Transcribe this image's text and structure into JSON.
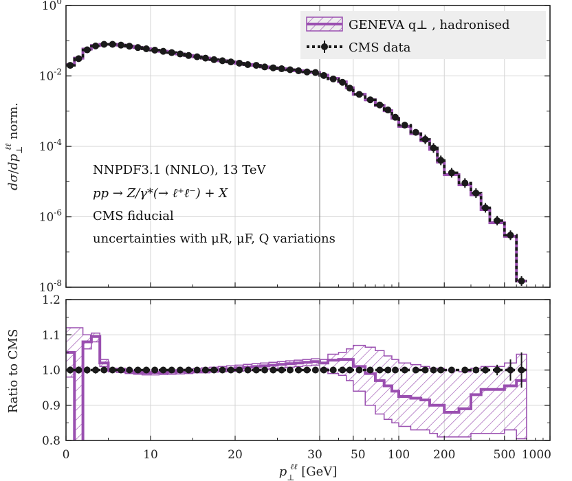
{
  "chart_data": [
    {
      "type": "line",
      "panel": "main",
      "ylabel": "dσ/dp⊥ℓℓ norm.",
      "yscale": "log",
      "ylim": [
        1e-08,
        1
      ],
      "ytick_labels": [
        {
          "value": 1,
          "base": "10",
          "exp": "0"
        },
        {
          "value": 0.01,
          "base": "10",
          "exp": "-2"
        },
        {
          "value": 0.0001,
          "base": "10",
          "exp": "-4"
        },
        {
          "value": 1e-06,
          "base": "10",
          "exp": "-6"
        },
        {
          "value": 1e-08,
          "base": "10",
          "exp": "-8"
        }
      ],
      "annotations": [
        "NNPDF3.1 (NNLO), 13 TeV",
        "pp → Z/γ*(→ ℓ⁺ℓ⁻) + X",
        "CMS fiducial",
        "uncertainties with μR, μF, Q variations"
      ],
      "legend_position": "top-right",
      "legend": [
        "GENEVA q⊥ , hadronised",
        "CMS data"
      ],
      "bin_edges": [
        0,
        1,
        2,
        3,
        4,
        5,
        6,
        7,
        8,
        9,
        10,
        11,
        12,
        13,
        14,
        15,
        16,
        17,
        18,
        19,
        20,
        21,
        22,
        23,
        24,
        25,
        26,
        27,
        28,
        29,
        30,
        34,
        40,
        45,
        50,
        60,
        70,
        80,
        90,
        100,
        120,
        140,
        160,
        180,
        200,
        250,
        300,
        350,
        400,
        500,
        600,
        700,
        1000
      ],
      "series": [
        {
          "name": "GENEVA q⊥ , hadronised",
          "values": [
            0.021,
            0.032,
            0.058,
            0.073,
            0.079,
            0.079,
            0.075,
            0.07,
            0.064,
            0.059,
            0.054,
            0.05,
            0.046,
            0.042,
            0.038,
            0.035,
            0.032,
            0.029,
            0.027,
            0.025,
            0.023,
            0.021,
            0.02,
            0.018,
            0.017,
            0.016,
            0.015,
            0.014,
            0.013,
            0.0125,
            0.0105,
            0.0085,
            0.0068,
            0.0046,
            0.003,
            0.0021,
            0.00145,
            0.00103,
            0.00063,
            0.00037,
            0.00023,
            0.000145,
            8.2e-05,
            3.6e-05,
            1.58e-05,
            8.1e-06,
            4.2e-06,
            1.6e-06,
            6.8e-07,
            2.8e-07,
            1.5e-08
          ]
        },
        {
          "name": "CMS data",
          "values": [
            0.02,
            0.031,
            0.055,
            0.071,
            0.079,
            0.079,
            0.075,
            0.07,
            0.064,
            0.059,
            0.054,
            0.05,
            0.046,
            0.042,
            0.038,
            0.035,
            0.032,
            0.029,
            0.027,
            0.025,
            0.023,
            0.021,
            0.02,
            0.018,
            0.017,
            0.016,
            0.015,
            0.014,
            0.013,
            0.0125,
            0.0103,
            0.0082,
            0.0066,
            0.0045,
            0.003,
            0.0021,
            0.0015,
            0.00108,
            0.00067,
            0.0004,
            0.00025,
            0.000158,
            9e-05,
            4e-05,
            1.78e-05,
            9.1e-06,
            4.7e-06,
            1.8e-06,
            7.8e-07,
            3e-07,
            1.5e-08
          ]
        }
      ]
    },
    {
      "type": "line",
      "panel": "ratio",
      "ylabel": "Ratio to CMS",
      "xlabel": "p⊥ℓℓ [GeV]",
      "ylim": [
        0.8,
        1.2
      ],
      "ytick_labels": [
        "1.2",
        "1.1",
        "1.0",
        "0.9",
        "0.8"
      ],
      "xtick_labels": [
        "0",
        "10",
        "20",
        "30",
        "50",
        "100",
        "200",
        "500",
        "1000"
      ],
      "xscale": "linear from 0 to 30 GeV, logarithmic from 30 to 1000 GeV",
      "series": [
        {
          "name": "GENEVA / CMS",
          "values": [
            1.05,
            0.78,
            1.08,
            1.095,
            1.02,
            1.0,
            1.0,
            0.996,
            0.993,
            0.992,
            0.993,
            0.993,
            0.994,
            0.995,
            0.996,
            0.997,
            0.998,
            1.0,
            1.002,
            1.004,
            1.006,
            1.008,
            1.01,
            1.012,
            1.014,
            1.016,
            1.018,
            1.02,
            1.022,
            1.024,
            1.02,
            1.028,
            1.03,
            1.03,
            1.01,
            0.99,
            0.97,
            0.955,
            0.94,
            0.925,
            0.92,
            0.915,
            0.9,
            0.9,
            0.88,
            0.89,
            0.93,
            0.945,
            0.945,
            0.955,
            0.97
          ]
        },
        {
          "name": "uncertainty band upper",
          "values": [
            1.12,
            1.12,
            1.1,
            1.105,
            1.03,
            1.005,
            1.005,
            1.0,
            1.0,
            1.0,
            1.0,
            1.0,
            1.0,
            1.001,
            1.002,
            1.004,
            1.006,
            1.008,
            1.01,
            1.012,
            1.014,
            1.016,
            1.018,
            1.02,
            1.022,
            1.024,
            1.026,
            1.028,
            1.03,
            1.032,
            1.03,
            1.045,
            1.05,
            1.06,
            1.07,
            1.065,
            1.055,
            1.04,
            1.03,
            1.02,
            1.015,
            1.01,
            1.005,
            1.005,
            1.0,
            0.995,
            1.005,
            1.01,
            1.01,
            1.02,
            1.045
          ]
        },
        {
          "name": "uncertainty band lower",
          "values": [
            0.98,
            0.78,
            1.06,
            1.08,
            1.01,
            0.995,
            0.993,
            0.99,
            0.988,
            0.986,
            0.986,
            0.987,
            0.988,
            0.989,
            0.99,
            0.992,
            0.992,
            0.994,
            0.995,
            0.996,
            0.997,
            0.998,
            1.0,
            1.002,
            1.004,
            1.006,
            1.008,
            1.01,
            1.012,
            1.014,
            1.005,
            0.99,
            0.985,
            0.97,
            0.94,
            0.9,
            0.875,
            0.86,
            0.85,
            0.84,
            0.83,
            0.83,
            0.82,
            0.81,
            0.81,
            0.81,
            0.82,
            0.82,
            0.82,
            0.83,
            0.805
          ]
        },
        {
          "name": "CMS data",
          "values": [
            1,
            1,
            1,
            1,
            1,
            1,
            1,
            1,
            1,
            1,
            1,
            1,
            1,
            1,
            1,
            1,
            1,
            1,
            1,
            1,
            1,
            1,
            1,
            1,
            1,
            1,
            1,
            1,
            1,
            1,
            1,
            1,
            1,
            1,
            1,
            1,
            1,
            1,
            1,
            1,
            1,
            1,
            1,
            1,
            1,
            1,
            1,
            1,
            1,
            1,
            1
          ],
          "errors": [
            0.01,
            0.01,
            0.01,
            0.01,
            0.005,
            0.005,
            0.005,
            0.005,
            0.005,
            0.005,
            0.005,
            0.005,
            0.005,
            0.005,
            0.005,
            0.005,
            0.005,
            0.005,
            0.005,
            0.005,
            0.005,
            0.005,
            0.005,
            0.005,
            0.005,
            0.005,
            0.005,
            0.005,
            0.005,
            0.005,
            0.005,
            0.005,
            0.005,
            0.005,
            0.005,
            0.005,
            0.005,
            0.005,
            0.005,
            0.005,
            0.005,
            0.005,
            0.005,
            0.005,
            0.005,
            0.005,
            0.007,
            0.01,
            0.015,
            0.03,
            0.05
          ]
        }
      ]
    }
  ],
  "colors": {
    "geneva": "#9a4fb0",
    "cms": "#1a1a1a",
    "grid": "#d4d4d4",
    "legend_bg": "#eeeeee"
  }
}
